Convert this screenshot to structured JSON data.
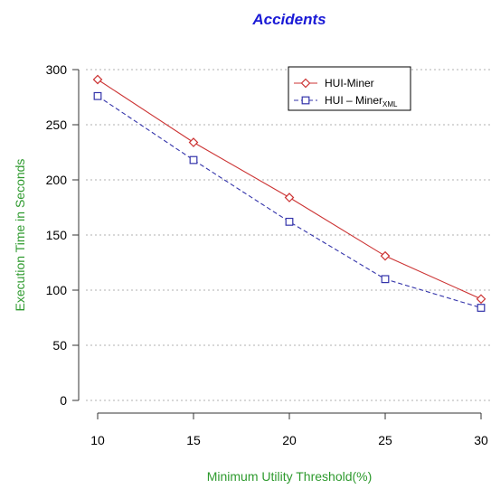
{
  "chart_data": {
    "type": "line",
    "title": "Accidents",
    "xlabel": "Minimum Utility Threshold(%)",
    "ylabel": "Execution Time in Seconds",
    "x": [
      10,
      15,
      20,
      25,
      30
    ],
    "xticks": [
      "10",
      "15",
      "20",
      "25",
      "30"
    ],
    "yticks": [
      "0",
      "50",
      "100",
      "150",
      "200",
      "250",
      "300"
    ],
    "xlim": [
      10,
      30
    ],
    "ylim": [
      0,
      300
    ],
    "grid": "horizontal dotted",
    "legend_position": "top-right",
    "series": [
      {
        "name": "HUI-Miner",
        "values": [
          291,
          234,
          184,
          131,
          92
        ],
        "color": "#cc3333",
        "line_style": "solid",
        "marker": "diamond"
      },
      {
        "name": "HUI – Miner",
        "name_subscript": "XML",
        "values": [
          276,
          218,
          162,
          110,
          84
        ],
        "color": "#3333aa",
        "line_style": "dashed",
        "marker": "square"
      }
    ],
    "colors": {
      "title": "#1a1ad6",
      "axis_label": "#2e9a2e",
      "grid": "#b0b0b0",
      "axis": "#333333"
    }
  }
}
